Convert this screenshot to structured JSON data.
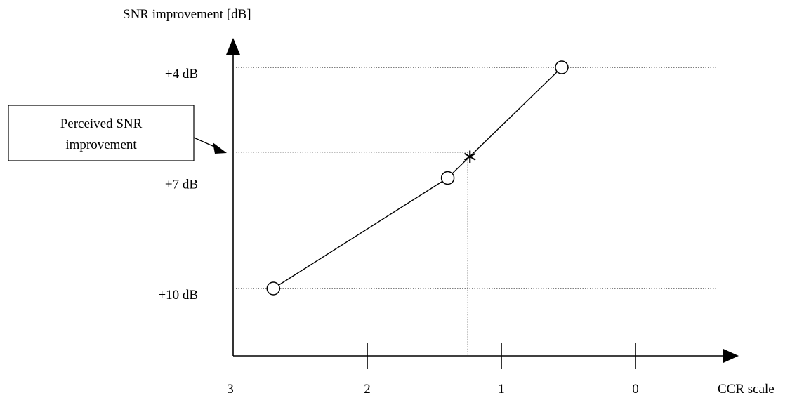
{
  "chart_data": {
    "type": "line",
    "ylabel": "SNR improvement [dB]",
    "xlabel": "CCR scale",
    "x_ticks": [
      "3",
      "2",
      "1",
      "0"
    ],
    "xlim": [
      3,
      0
    ],
    "y_ticks": [
      "+4 dB",
      "+7 dB",
      "+10 dB"
    ],
    "ylim": [
      11.7,
      3
    ],
    "series": [
      {
        "x": [
          2.7,
          1.4,
          0.55
        ],
        "y": [
          10,
          7,
          4
        ]
      }
    ],
    "annotation": {
      "label": "Perceived SNR improvement",
      "marker": "*",
      "x": 1.25,
      "y": 6.3
    },
    "grid": "dotted reference lines"
  }
}
